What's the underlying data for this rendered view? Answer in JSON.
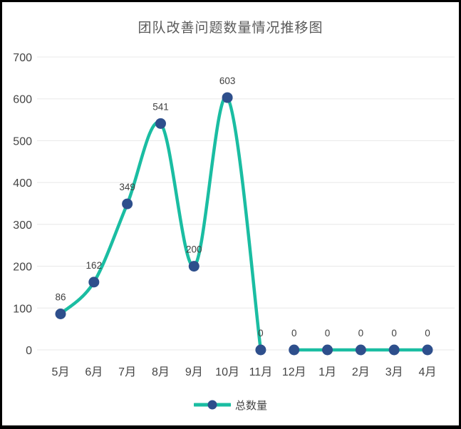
{
  "window": {
    "background": "#ffffff",
    "border_color": "#000000"
  },
  "chart_data": {
    "type": "line",
    "title": "团队改善问题数量情况推移图",
    "categories": [
      "5月",
      "6月",
      "7月",
      "8月",
      "9月",
      "10月",
      "11月",
      "12月",
      "1月",
      "2月",
      "3月",
      "4月"
    ],
    "series": [
      {
        "name": "总数量",
        "values": [
          86,
          162,
          349,
          541,
          200,
          603,
          0,
          0,
          0,
          0,
          0,
          0
        ]
      }
    ],
    "data_labels": [
      "86",
      "162",
      "349",
      "541",
      "200",
      "603",
      "0",
      "0",
      "0",
      "0",
      "0",
      "0"
    ],
    "y_ticks": [
      0,
      100,
      200,
      300,
      400,
      500,
      600,
      700
    ],
    "ylim": [
      0,
      700
    ],
    "xlabel": "",
    "ylabel": "",
    "grid": true,
    "legend_position": "bottom",
    "line_gap_between": [
      "11月",
      "12月"
    ],
    "line_segments": [
      [
        0,
        6
      ],
      [
        7,
        11
      ]
    ],
    "colors": {
      "line": "#1abda2",
      "marker": "#2e4f8c",
      "grid": "#e8e8e8",
      "title_text": "#595959",
      "axis_text": "#444444",
      "label_text": "#404040"
    }
  }
}
